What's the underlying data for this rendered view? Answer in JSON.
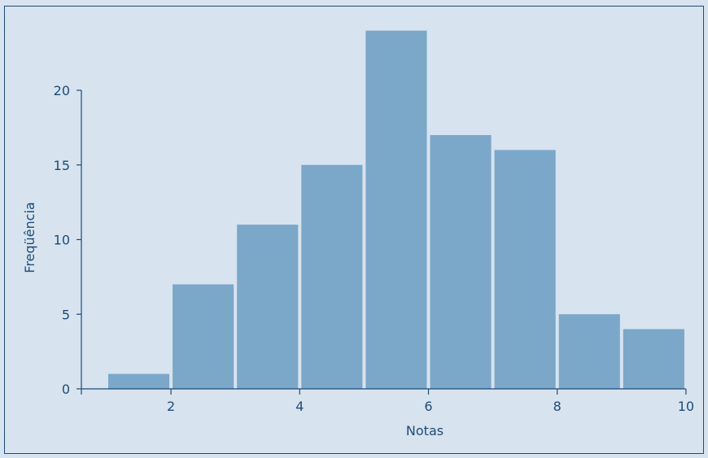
{
  "chart_data": {
    "type": "bar",
    "title": "",
    "xlabel": "Notas",
    "ylabel": "Freqüência",
    "bins": [
      {
        "x0": 1,
        "x1": 2,
        "value": 1
      },
      {
        "x0": 2,
        "x1": 3,
        "value": 7
      },
      {
        "x0": 3,
        "x1": 4,
        "value": 11
      },
      {
        "x0": 4,
        "x1": 5,
        "value": 15
      },
      {
        "x0": 5,
        "x1": 6,
        "value": 24
      },
      {
        "x0": 6,
        "x1": 7,
        "value": 17
      },
      {
        "x0": 7,
        "x1": 8,
        "value": 16
      },
      {
        "x0": 8,
        "x1": 9,
        "value": 5
      },
      {
        "x0": 9,
        "x1": 10,
        "value": 4
      }
    ],
    "xlim": [
      1,
      10
    ],
    "ylim": [
      0,
      24
    ],
    "xticks": [
      2,
      4,
      6,
      8,
      10
    ],
    "yticks": [
      0,
      5,
      10,
      15,
      20
    ],
    "grid": false,
    "colors": {
      "background": "#d7e3ee",
      "bar": "#7ba7c9",
      "axis": "#1d4c7a"
    }
  }
}
